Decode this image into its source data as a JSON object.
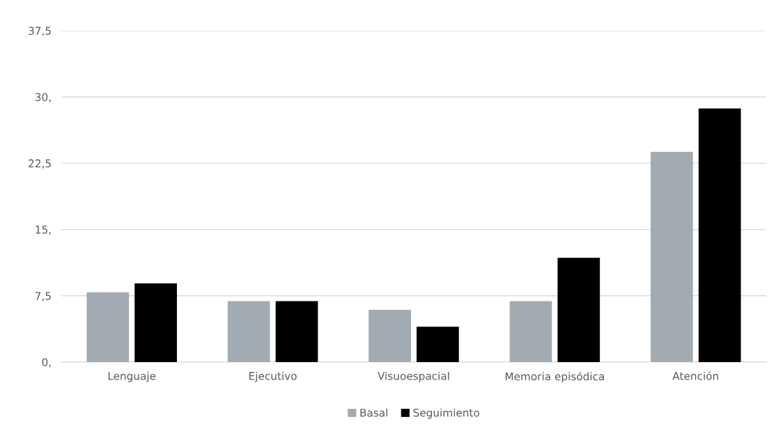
{
  "chart_data": {
    "type": "bar",
    "categories": [
      "Lenguaje",
      "Ejecutivo",
      "Visuoespacial",
      "Memoria episódica",
      "Atención"
    ],
    "series": [
      {
        "name": "Basal",
        "color": "#a2abb2",
        "values": [
          7.9,
          6.9,
          5.9,
          6.9,
          23.8
        ]
      },
      {
        "name": "Seguimiento",
        "color": "#000000",
        "values": [
          8.9,
          6.9,
          4.0,
          11.8,
          28.7
        ]
      }
    ],
    "ylim": [
      0,
      37.5
    ],
    "yticks": [
      {
        "value": 0,
        "label": "0,"
      },
      {
        "value": 7.5,
        "label": "7,5"
      },
      {
        "value": 15,
        "label": "15,"
      },
      {
        "value": 22.5,
        "label": "22,5"
      },
      {
        "value": 30,
        "label": "30,"
      },
      {
        "value": 37.5,
        "label": "37,5"
      }
    ],
    "grid": "y",
    "legend": "bottom"
  }
}
